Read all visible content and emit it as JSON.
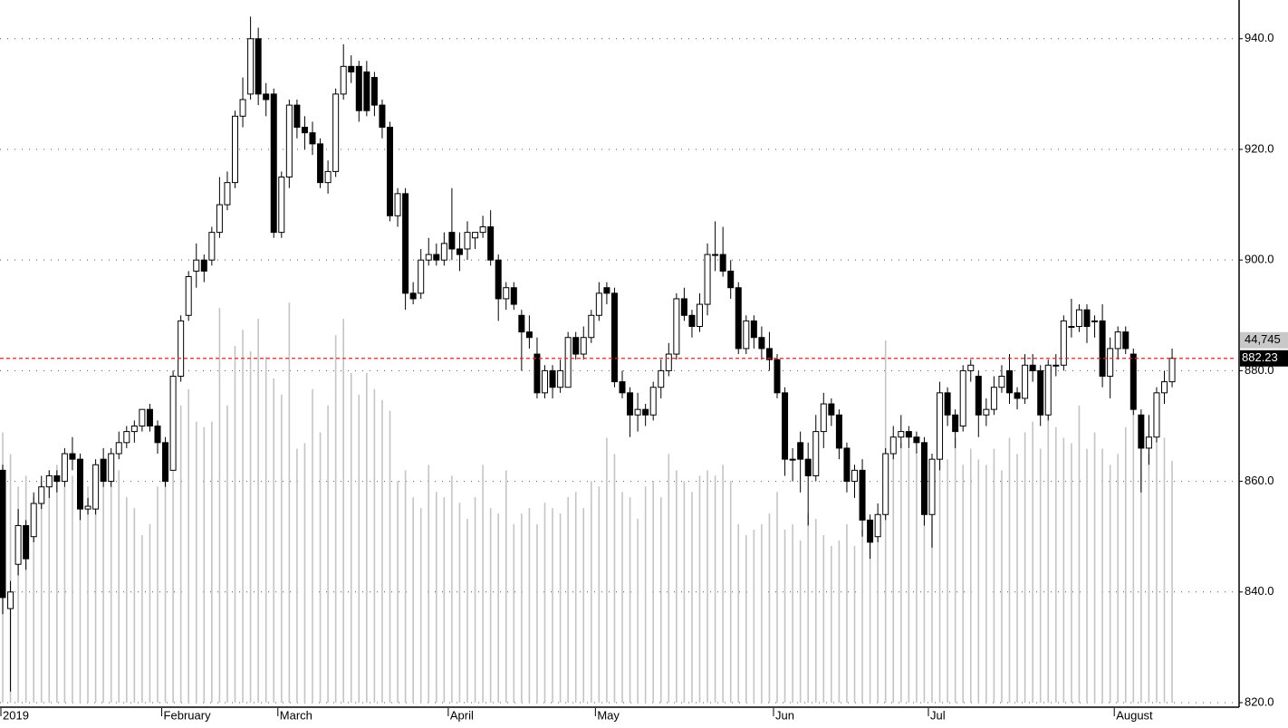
{
  "chart_data": {
    "type": "candlestick",
    "categories": [
      "2019",
      null,
      null,
      null,
      null,
      null,
      null,
      null,
      null,
      null,
      null,
      null,
      null,
      null,
      null,
      null,
      null,
      null,
      null,
      null,
      null,
      "February",
      null,
      null,
      null,
      null,
      null,
      null,
      null,
      null,
      null,
      null,
      null,
      null,
      null,
      null,
      "March",
      null,
      null,
      null,
      null,
      null,
      null,
      null,
      null,
      null,
      null,
      null,
      null,
      null,
      null,
      null,
      null,
      null,
      null,
      null,
      null,
      null,
      "April",
      null,
      null,
      null,
      null,
      null,
      null,
      null,
      null,
      null,
      null,
      null,
      null,
      null,
      null,
      null,
      null,
      null,
      null,
      "May",
      null,
      null,
      null,
      null,
      null,
      null,
      null,
      null,
      null,
      null,
      null,
      null,
      null,
      null,
      null,
      null,
      null,
      null,
      null,
      null,
      null,
      null,
      "Jun",
      null,
      null,
      null,
      null,
      null,
      null,
      null,
      null,
      null,
      null,
      null,
      null,
      null,
      null,
      null,
      null,
      null,
      null,
      null,
      "Jul",
      null,
      null,
      null,
      null,
      null,
      null,
      null,
      null,
      null,
      null,
      null,
      null,
      null,
      null,
      null,
      null,
      null,
      null,
      null,
      null,
      null,
      null,
      null,
      "August",
      null,
      null,
      null,
      null,
      null,
      null,
      null
    ],
    "open": [
      862,
      837,
      845,
      852,
      850,
      856,
      859,
      861,
      860,
      865,
      864,
      855,
      855,
      864,
      860,
      865,
      867,
      869,
      870,
      873,
      870,
      867,
      862,
      879,
      890,
      898,
      900,
      900,
      905,
      910,
      914,
      926,
      930,
      940,
      930,
      930,
      905,
      915,
      928,
      924,
      923,
      921,
      914,
      916,
      930,
      935,
      935,
      934,
      933,
      928,
      924,
      908,
      912,
      894,
      894,
      900,
      901,
      900,
      905,
      902,
      902,
      904,
      905,
      906,
      900,
      893,
      895,
      890,
      887,
      883,
      876,
      880,
      877,
      877,
      886,
      883,
      886,
      890,
      895,
      894,
      878,
      876,
      872,
      873,
      872,
      877,
      880,
      883,
      893,
      890,
      888,
      892,
      901,
      901,
      898,
      895,
      884,
      889,
      886,
      884,
      882,
      876,
      864,
      867,
      864,
      861,
      869,
      874,
      872,
      866,
      860,
      862,
      853,
      850,
      854,
      865,
      868,
      869,
      868,
      867,
      854,
      864,
      876,
      872,
      870,
      880,
      879,
      872,
      873,
      877,
      880,
      876,
      875,
      881,
      880,
      872,
      881,
      881,
      888,
      888,
      891,
      889,
      889,
      879,
      884,
      887,
      883,
      872,
      866,
      868,
      876,
      878
    ],
    "high": [
      863,
      842,
      855,
      853,
      858,
      861,
      862,
      862,
      866,
      868,
      865,
      857,
      864,
      866,
      866,
      869,
      870,
      871,
      873,
      874,
      871,
      868,
      880,
      890,
      898,
      903,
      901,
      906,
      915,
      916,
      927,
      933,
      944,
      942,
      932,
      931,
      916,
      929,
      929,
      926,
      925,
      922,
      918,
      931,
      939,
      937,
      936,
      936,
      934,
      929,
      925,
      913,
      913,
      896,
      902,
      904,
      903,
      905,
      913,
      905,
      907,
      905,
      908,
      909,
      901,
      896,
      896,
      891,
      890,
      886,
      881,
      881,
      882,
      887,
      887,
      888,
      891,
      896,
      896,
      895,
      880,
      877,
      876,
      874,
      878,
      882,
      885,
      894,
      895,
      891,
      894,
      903,
      907,
      906,
      900,
      896,
      890,
      890,
      888,
      887,
      883,
      877,
      866,
      869,
      867,
      872,
      876,
      875,
      873,
      867,
      863,
      864,
      854,
      856,
      866,
      870,
      872,
      870,
      869,
      868,
      865,
      878,
      877,
      873,
      881,
      882,
      880,
      875,
      879,
      881,
      883,
      877,
      883,
      883,
      881,
      882,
      883,
      890,
      893,
      892,
      892,
      890,
      892,
      886,
      888,
      888,
      884,
      873,
      872,
      877,
      880,
      884
    ],
    "low": [
      836,
      822,
      843,
      844,
      849,
      855,
      857,
      858,
      859,
      862,
      853,
      854,
      854,
      859,
      859,
      864,
      866,
      867,
      869,
      869,
      865,
      859,
      862,
      878,
      889,
      895,
      896,
      899,
      904,
      909,
      913,
      924,
      929,
      928,
      926,
      904,
      904,
      913,
      922,
      920,
      919,
      913,
      912,
      915,
      929,
      932,
      925,
      926,
      926,
      922,
      907,
      906,
      891,
      892,
      893,
      899,
      899,
      899,
      900,
      898,
      900,
      902,
      904,
      899,
      889,
      891,
      891,
      880,
      884,
      875,
      875,
      875,
      876,
      877,
      882,
      882,
      885,
      889,
      892,
      877,
      875,
      868,
      869,
      870,
      871,
      875,
      879,
      882,
      889,
      886,
      887,
      890,
      898,
      897,
      893,
      883,
      883,
      884,
      882,
      880,
      875,
      861,
      860,
      858,
      852,
      860,
      866,
      870,
      864,
      858,
      857,
      850,
      846,
      849,
      853,
      864,
      866,
      866,
      865,
      852,
      848,
      862,
      870,
      866,
      869,
      878,
      868,
      870,
      872,
      876,
      874,
      873,
      874,
      878,
      870,
      871,
      879,
      880,
      886,
      887,
      885,
      886,
      877,
      875,
      882,
      883,
      872,
      858,
      863,
      867,
      874,
      877
    ],
    "close": [
      839,
      840,
      852,
      846,
      856,
      859,
      861,
      860,
      865,
      864,
      855,
      855.5,
      863,
      860,
      865,
      867,
      869,
      870,
      873,
      870,
      867,
      860,
      879,
      889,
      897,
      900,
      898,
      905,
      910,
      914,
      926,
      929,
      940,
      930,
      929,
      905,
      915,
      928,
      924,
      923,
      921,
      914,
      916,
      930,
      935,
      934,
      927,
      927,
      928,
      924,
      908,
      912,
      894,
      893,
      900,
      901,
      900,
      903,
      902,
      901,
      905,
      905,
      906,
      900,
      893,
      895,
      892,
      887,
      886,
      876,
      880,
      877,
      880,
      886,
      883,
      886,
      890,
      894,
      894,
      878,
      876,
      872,
      873,
      872,
      877,
      880,
      883,
      893,
      890,
      888,
      892,
      901,
      901,
      898,
      895,
      884,
      889,
      886,
      884,
      882,
      876,
      864,
      864,
      864,
      861,
      869,
      874,
      872,
      866,
      860,
      862,
      853,
      849,
      854,
      865,
      868,
      869,
      868,
      867,
      854,
      864,
      876,
      872,
      869,
      880,
      881,
      872,
      873,
      877,
      879,
      876,
      875,
      881,
      880,
      872,
      881,
      881,
      889,
      888,
      891,
      888,
      889,
      879,
      884,
      887,
      884,
      873,
      866,
      868,
      876,
      878,
      882.23
    ],
    "volume": [
      50000,
      46000,
      40000,
      42000,
      38000,
      41000,
      43000,
      44000,
      40000,
      42000,
      37000,
      40000,
      36000,
      40000,
      41000,
      43000,
      38000,
      36000,
      31000,
      33000,
      40000,
      45000,
      52000,
      55000,
      58000,
      52000,
      51000,
      52000,
      73000,
      55000,
      66000,
      69000,
      65000,
      71000,
      64000,
      60000,
      57000,
      74000,
      47000,
      48000,
      58000,
      50000,
      55000,
      68000,
      71000,
      61000,
      57000,
      61000,
      58000,
      56000,
      54000,
      41000,
      43000,
      38000,
      36000,
      44000,
      39000,
      38000,
      42000,
      37000,
      34000,
      38000,
      44000,
      36000,
      35000,
      43000,
      33000,
      35000,
      36000,
      33000,
      37000,
      36000,
      35000,
      38000,
      39000,
      36000,
      41000,
      40000,
      49000,
      46000,
      39000,
      38000,
      34000,
      40000,
      41000,
      38000,
      46000,
      43000,
      41000,
      39000,
      42000,
      43000,
      42000,
      44000,
      41000,
      33000,
      31000,
      32000,
      33000,
      35000,
      39000,
      32000,
      33000,
      30000,
      35000,
      34000,
      31000,
      29000,
      30000,
      33000,
      29000,
      32000,
      33000,
      35000,
      67000,
      46000,
      48000,
      47000,
      46000,
      40000,
      42000,
      47000,
      45000,
      49000,
      44000,
      47000,
      45000,
      44000,
      47000,
      43000,
      49000,
      46000,
      50000,
      52000,
      47000,
      53000,
      51000,
      49000,
      48000,
      55000,
      47000,
      50000,
      47000,
      44000,
      46000,
      51000,
      54000,
      47000,
      46000,
      48000,
      49000,
      44745
    ],
    "last_volume_label": "44,745",
    "up_color": "#ffffff",
    "down_color": "#000000",
    "volume_color": "#c4c4c4",
    "last_price_line_color": "#e8222a",
    "ylim": [
      820,
      947
    ],
    "yticks": [
      {
        "value": 820,
        "label": "820.0"
      },
      {
        "value": 840,
        "label": "840.0"
      },
      {
        "value": 860,
        "label": "860.0"
      },
      {
        "value": 880,
        "label": "880.0"
      },
      {
        "value": 900,
        "label": "900.0"
      },
      {
        "value": 920,
        "label": "920.0"
      },
      {
        "value": 940,
        "label": "940.0"
      }
    ],
    "vlim": [
      0,
      130000
    ],
    "grid": true
  }
}
